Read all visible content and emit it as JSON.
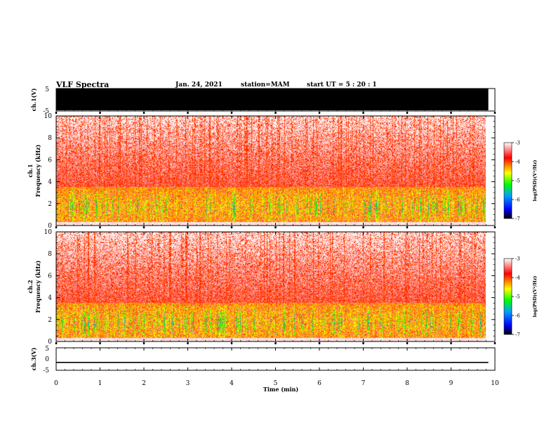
{
  "chart_data": {
    "type": "heatmap",
    "title": "VLF Spectra",
    "date": "Jan. 24, 2021",
    "station": "station=MAM",
    "start": "start UT =  5 : 20 : 1",
    "x": {
      "label": "Time (min)",
      "range": [
        0,
        10
      ],
      "ticks": [
        "0",
        "1",
        "2",
        "3",
        "4",
        "5",
        "6",
        "7",
        "8",
        "9",
        "10"
      ]
    },
    "panels": [
      {
        "name": "ch.1 waveform",
        "ylabel": "ch.1(V)",
        "ylim": [
          -5,
          5
        ],
        "yticks": [
          "5",
          "-5"
        ],
        "trace": "saturated (full-scale black)",
        "data_end_min": 9.85
      },
      {
        "name": "ch.1 spectrogram",
        "ylabel_top": "ch.1",
        "ylabel_bottom": "Frequency (kHz)",
        "ylim": [
          0,
          10
        ],
        "yticks": [
          "0",
          "2",
          "4",
          "6",
          "8",
          "10"
        ],
        "data_end_min": 9.85,
        "intense_band_khz": [
          0.5,
          3.5
        ],
        "colorbar": {
          "range": [
            -7,
            -3
          ],
          "ticks": [
            "-3",
            "-4",
            "-5",
            "-6",
            "-7"
          ],
          "label": "log(PSD)(V²/Hz)"
        }
      },
      {
        "name": "ch.2 spectrogram",
        "ylabel_top": "ch.2",
        "ylabel_bottom": "Frequency (kHz)",
        "ylim": [
          0,
          10
        ],
        "yticks": [
          "0",
          "2",
          "4",
          "6",
          "8",
          "10"
        ],
        "data_end_min": 9.85,
        "intense_band_khz": [
          0.5,
          3.5
        ],
        "colorbar": {
          "range": [
            -7,
            -3
          ],
          "ticks": [
            "-3",
            "-4",
            "-5",
            "-6",
            "-7"
          ],
          "label": "log(PSD)(V²/Hz)"
        }
      },
      {
        "name": "ch.3 waveform",
        "ylabel": "ch.3(V)",
        "ylim": [
          -5,
          5
        ],
        "yticks": [
          "5",
          "0",
          "-5"
        ],
        "trace_value_v": -1.5,
        "data_end_min": 9.85
      }
    ]
  }
}
